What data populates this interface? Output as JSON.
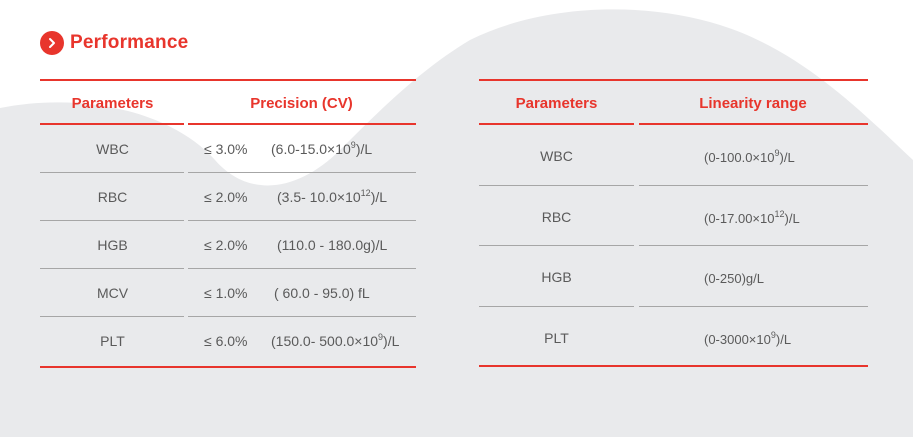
{
  "section": {
    "title": "Performance",
    "icon": "chevron-right-icon",
    "accent": "#e8352c"
  },
  "precision_table": {
    "headers": [
      "Parameters",
      "Precision (CV)"
    ],
    "rows": [
      {
        "param": "WBC",
        "cv": "≤ 3.0%",
        "range_pre": "(6.0-15.0×10",
        "range_sup": "9",
        "range_post": ")/L"
      },
      {
        "param": "RBC",
        "cv": "≤ 2.0%",
        "range_pre": "(3.5- 10.0×10",
        "range_sup": "12",
        "range_post": ")/L"
      },
      {
        "param": "HGB",
        "cv": "≤ 2.0%",
        "range_pre": "(110.0 - 180.0g)/L",
        "range_sup": "",
        "range_post": ""
      },
      {
        "param": "MCV",
        "cv": "≤ 1.0%",
        "range_pre": "( 60.0 - 95.0)  fL",
        "range_sup": "",
        "range_post": ""
      },
      {
        "param": "PLT",
        "cv": "≤ 6.0%",
        "range_pre": "(150.0- 500.0×10",
        "range_sup": "9",
        "range_post": ")/L"
      }
    ]
  },
  "linearity_table": {
    "headers": [
      "Parameters",
      "Linearity range"
    ],
    "rows": [
      {
        "param": "WBC",
        "range_pre": "(0-100.0×10",
        "range_sup": "9",
        "range_post": ")/L"
      },
      {
        "param": "RBC",
        "range_pre": "(0-17.00×10",
        "range_sup": "12",
        "range_post": ")/L"
      },
      {
        "param": "HGB",
        "range_pre": "(0-250)g/L",
        "range_sup": "",
        "range_post": ""
      },
      {
        "param": "PLT",
        "range_pre": "(0-3000×10",
        "range_sup": "9",
        "range_post": ")/L"
      }
    ]
  }
}
